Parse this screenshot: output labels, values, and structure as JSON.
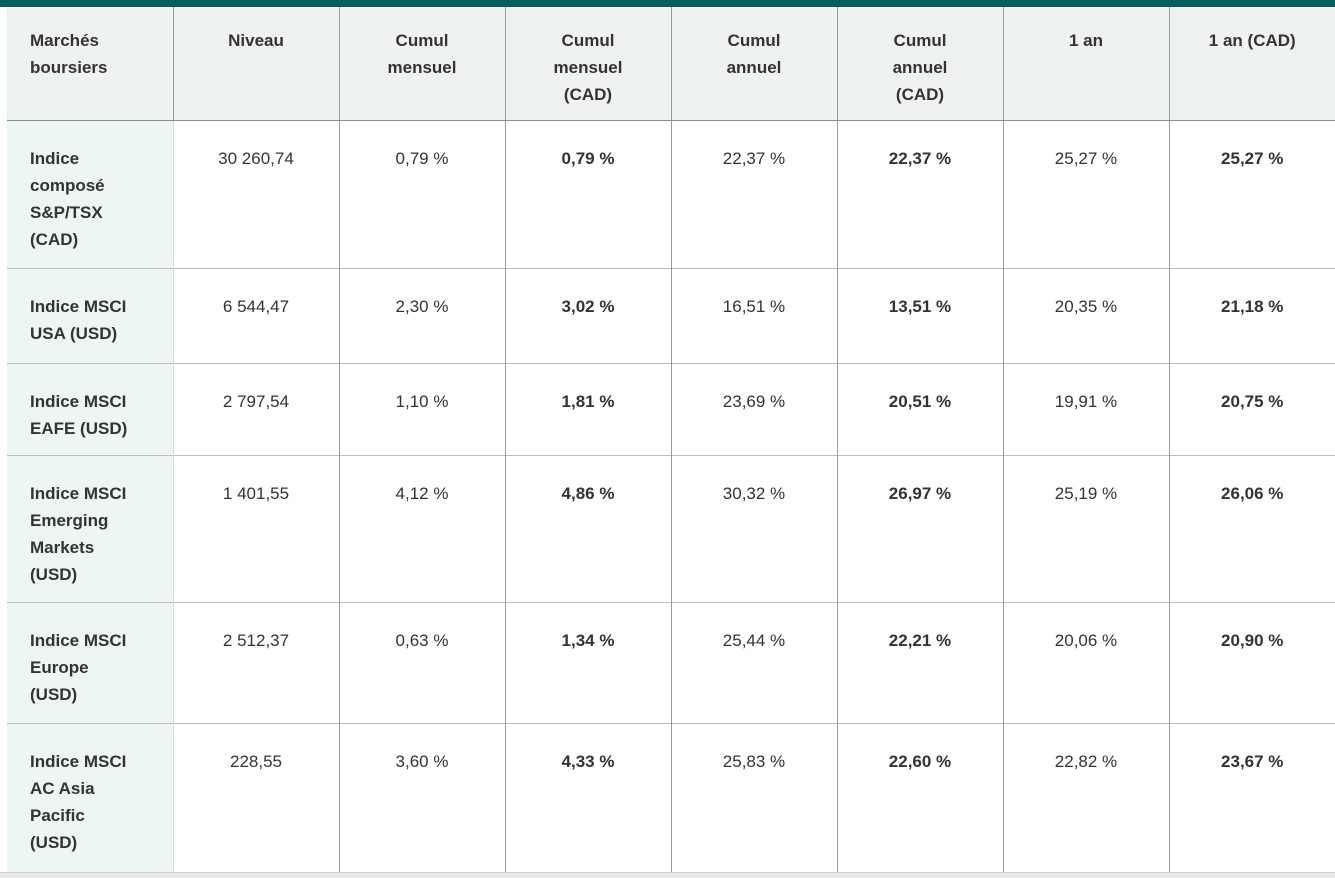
{
  "colors": {
    "top_bar": "#04605f",
    "header_bg": "#eef3f2",
    "label_col_bg": "#edf6f2",
    "grid_line": "#9b9b9b",
    "row_line": "#bcbcbc",
    "header_rule": "#8f8f8f",
    "label_col_divider": "#d9dedc",
    "text": "#333333",
    "bottom_bar": "#e7e7e7"
  },
  "table": {
    "headers": [
      "Marchés\nboursiers",
      "Niveau",
      "Cumul\nmensuel",
      "Cumul\nmensuel\n(CAD)",
      "Cumul\nannuel",
      "Cumul\nannuel\n(CAD)",
      "1 an",
      "1 an (CAD)"
    ],
    "rows": [
      {
        "label": "Indice\ncomposé\nS&P/TSX\n(CAD)",
        "values": [
          "30 260,74",
          "0,79 %",
          "0,79 %",
          "22,37 %",
          "22,37 %",
          "25,27 %",
          "25,27 %"
        ]
      },
      {
        "label": "Indice MSCI\nUSA (USD)",
        "values": [
          "6 544,47",
          "2,30 %",
          "3,02 %",
          "16,51 %",
          "13,51 %",
          "20,35 %",
          "21,18 %"
        ]
      },
      {
        "label": "Indice MSCI\nEAFE (USD)",
        "values": [
          "2 797,54",
          "1,10 %",
          "1,81 %",
          "23,69 %",
          "20,51 %",
          "19,91 %",
          "20,75 %"
        ]
      },
      {
        "label": "Indice MSCI\nEmerging\nMarkets\n(USD)",
        "values": [
          "1 401,55",
          "4,12 %",
          "4,86 %",
          "30,32 %",
          "26,97 %",
          "25,19 %",
          "26,06 %"
        ]
      },
      {
        "label": "Indice MSCI\nEurope\n(USD)",
        "values": [
          "2 512,37",
          "0,63 %",
          "1,34 %",
          "25,44 %",
          "22,21 %",
          "20,06 %",
          "20,90 %"
        ]
      },
      {
        "label": "Indice MSCI\nAC Asia\nPacific\n(USD)",
        "values": [
          "228,55",
          "3,60 %",
          "4,33 %",
          "25,83 %",
          "22,60 %",
          "22,82 %",
          "23,67 %"
        ]
      }
    ]
  },
  "chart_data": {
    "type": "table",
    "title": "Marchés boursiers",
    "columns": [
      "Marchés boursiers",
      "Niveau",
      "Cumul mensuel",
      "Cumul mensuel (CAD)",
      "Cumul annuel",
      "Cumul annuel (CAD)",
      "1 an",
      "1 an (CAD)"
    ],
    "rows": [
      [
        "Indice composé S&P/TSX (CAD)",
        "30 260,74",
        "0,79 %",
        "0,79 %",
        "22,37 %",
        "22,37 %",
        "25,27 %",
        "25,27 %"
      ],
      [
        "Indice MSCI USA (USD)",
        "6 544,47",
        "2,30 %",
        "3,02 %",
        "16,51 %",
        "13,51 %",
        "20,35 %",
        "21,18 %"
      ],
      [
        "Indice MSCI EAFE (USD)",
        "2 797,54",
        "1,10 %",
        "1,81 %",
        "23,69 %",
        "20,51 %",
        "19,91 %",
        "20,75 %"
      ],
      [
        "Indice MSCI Emerging Markets (USD)",
        "1 401,55",
        "4,12 %",
        "4,86 %",
        "30,32 %",
        "26,97 %",
        "25,19 %",
        "26,06 %"
      ],
      [
        "Indice MSCI Europe (USD)",
        "2 512,37",
        "0,63 %",
        "1,34 %",
        "25,44 %",
        "22,21 %",
        "20,06 %",
        "20,90 %"
      ],
      [
        "Indice MSCI AC Asia Pacific (USD)",
        "228,55",
        "3,60 %",
        "4,33 %",
        "25,83 %",
        "22,60 %",
        "22,82 %",
        "23,67 %"
      ]
    ],
    "layout": {
      "label_column_background": "#edf6f2",
      "header_background": "#eef3f2",
      "bold_columns": [
        "Cumul mensuel (CAD)",
        "Cumul annuel (CAD)",
        "1 an (CAD)"
      ],
      "top_rule_color": "#04605f"
    }
  }
}
